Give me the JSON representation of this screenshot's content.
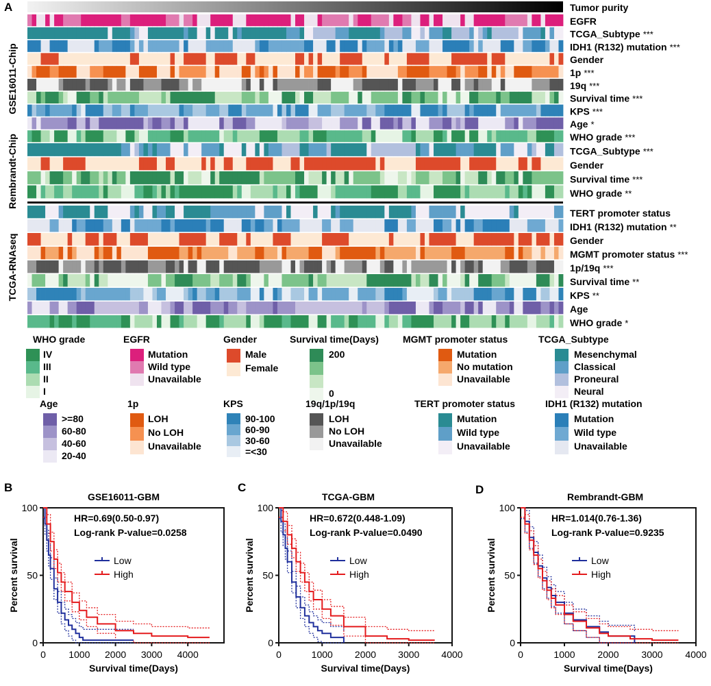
{
  "panel_letters": {
    "a": "A",
    "b": "B",
    "c": "C",
    "d": "D"
  },
  "heatmap": {
    "tumor_purity_label": "Tumor purity",
    "groups": [
      {
        "name": "GSE16011-Chip",
        "rows": [
          {
            "label": "EGFR",
            "sig": "",
            "palette": "egfr"
          },
          {
            "label": "TCGA_Subtype",
            "sig": "***",
            "palette": "subtype"
          },
          {
            "label": "IDH1 (R132) mutation",
            "sig": "***",
            "palette": "idh1"
          },
          {
            "label": "Gender",
            "sig": "",
            "palette": "gender"
          },
          {
            "label": "1p",
            "sig": "***",
            "palette": "p1"
          },
          {
            "label": "19q",
            "sig": "***",
            "palette": "loh"
          },
          {
            "label": "Survival  time",
            "sig": "***",
            "palette": "surv"
          },
          {
            "label": "KPS",
            "sig": "***",
            "palette": "kps"
          },
          {
            "label": "Age",
            "sig": "*",
            "palette": "age"
          },
          {
            "label": "WHO grade",
            "sig": "***",
            "palette": "who"
          }
        ]
      },
      {
        "name": "Rembrandt-Chip",
        "rows": [
          {
            "label": "TCGA_Subtype",
            "sig": "***",
            "palette": "subtype"
          },
          {
            "label": "Gender",
            "sig": "",
            "palette": "gender"
          },
          {
            "label": "Survival  time",
            "sig": "***",
            "palette": "surv"
          },
          {
            "label": "WHO grade",
            "sig": "**",
            "palette": "who"
          }
        ]
      },
      {
        "name": "TCGA-RNAseq",
        "rows": [
          {
            "label": "TERT promoter status",
            "sig": "",
            "palette": "tert"
          },
          {
            "label": "IDH1 (R132) mutation",
            "sig": "**",
            "palette": "idh1"
          },
          {
            "label": "Gender",
            "sig": "",
            "palette": "gender"
          },
          {
            "label": "MGMT promoter status",
            "sig": "***",
            "palette": "mgmt"
          },
          {
            "label": "1p/19q",
            "sig": "***",
            "palette": "loh"
          },
          {
            "label": "Survival  time",
            "sig": "**",
            "palette": "surv"
          },
          {
            "label": "KPS",
            "sig": "**",
            "palette": "kps"
          },
          {
            "label": "Age",
            "sig": "",
            "palette": "age"
          },
          {
            "label": "WHO grade",
            "sig": "*",
            "palette": "who"
          }
        ]
      }
    ],
    "palettes": {
      "egfr": [
        "#dc1f7c",
        "#e07ab0",
        "#efe3ef"
      ],
      "subtype": [
        "#2a8b93",
        "#5f9fc8",
        "#b2c0de",
        "#f3eef6"
      ],
      "idh1": [
        "#2b7fb8",
        "#6fa9d2",
        "#e5e8f1"
      ],
      "gender": [
        "#dd4a2b",
        "#fde9d4"
      ],
      "p1": [
        "#e05a11",
        "#f69151",
        "#fde5d2"
      ],
      "loh": [
        "#555555",
        "#999999",
        "#f2f2f2"
      ],
      "surv": [
        "#2e8b57",
        "#7cc38a",
        "#c8e6c4",
        "#eef6ec"
      ],
      "kps": [
        "#2f83b8",
        "#69a6cf",
        "#a9c8e1",
        "#e8eef5"
      ],
      "age": [
        "#6f5fa8",
        "#9d93c8",
        "#c6c0df",
        "#ece9f4"
      ],
      "who": [
        "#2e9156",
        "#59b98b",
        "#acdcb2",
        "#e6f4e5"
      ],
      "tert": [
        "#2a8b93",
        "#5f9fc8",
        "#f3eef6"
      ],
      "mgmt": [
        "#e05a11",
        "#f5a86c",
        "#fde5d2"
      ]
    }
  },
  "legend": [
    {
      "title": "WHO grade",
      "palette": "who",
      "items": [
        "IV",
        "III",
        "II",
        "I"
      ]
    },
    {
      "title": "EGFR",
      "palette": "egfr",
      "items": [
        "Mutation",
        "Wild type",
        "Unavailable"
      ]
    },
    {
      "title": "Gender",
      "palette": "gender",
      "items": [
        "Male",
        "Female"
      ]
    },
    {
      "title": "Survival  time(Days)",
      "palette": "surv",
      "items": [
        "200",
        "0"
      ]
    },
    {
      "title": "MGMT promoter status",
      "palette": "mgmt",
      "items": [
        "Mutation",
        "No mutation",
        "Unavailable"
      ]
    },
    {
      "title": "TCGA_Subtype",
      "palette": "subtype",
      "items": [
        "Mesenchymal",
        "Classical",
        "Proneural",
        "Neural"
      ]
    },
    {
      "title": "Age",
      "palette": "age",
      "items": [
        ">=80",
        "60-80",
        "40-60",
        "20-40"
      ]
    },
    {
      "title": "1p",
      "palette": "p1",
      "items": [
        "LOH",
        "No LOH",
        "Unavailable"
      ]
    },
    {
      "title": "KPS",
      "palette": "kps",
      "items": [
        "90-100",
        "60-90",
        "30-60",
        "=<30"
      ]
    },
    {
      "title": "19q/1p/19q",
      "palette": "loh",
      "items": [
        "LOH",
        "No LOH",
        "Unavailable"
      ]
    },
    {
      "title": "TERT promoter status",
      "palette": "tert",
      "items": [
        "Mutation",
        "Wild type",
        "Unavailable"
      ]
    },
    {
      "title": "IDH1 (R132) mutation",
      "palette": "idh1",
      "items": [
        "Mutation",
        "Wild type",
        "Unavailable"
      ]
    }
  ],
  "chart_data": [
    {
      "type": "line",
      "title": "GSE16011-GBM",
      "xlabel": "Survival time(Days)",
      "ylabel": "Percent survival",
      "xlim": [
        0,
        5000
      ],
      "ylim": [
        0,
        100
      ],
      "xticks": [
        0,
        1000,
        2000,
        3000,
        4000
      ],
      "yticks": [
        0,
        50,
        100
      ],
      "annotation": [
        "HR=0.69(0.50-0.97)",
        "Log-rank P-value=0.0258"
      ],
      "series": [
        {
          "name": "Low",
          "color": "#1f2f9c",
          "x": [
            0,
            50,
            100,
            150,
            200,
            300,
            400,
            500,
            600,
            700,
            800,
            900,
            1000,
            1100,
            2500
          ],
          "y": [
            100,
            88,
            76,
            65,
            55,
            40,
            30,
            22,
            17,
            13,
            10,
            7,
            4,
            2,
            2
          ]
        },
        {
          "name": "High",
          "color": "#e41a1c",
          "x": [
            0,
            100,
            200,
            300,
            400,
            500,
            600,
            800,
            1000,
            1200,
            1500,
            2000,
            2500,
            3000,
            4000,
            4600
          ],
          "y": [
            100,
            88,
            75,
            62,
            52,
            45,
            38,
            30,
            24,
            19,
            14,
            9,
            7,
            5,
            4,
            4
          ]
        }
      ]
    },
    {
      "type": "line",
      "title": "TCGA-GBM",
      "xlabel": "Survival time(Days)",
      "ylabel": "Percent survival",
      "xlim": [
        0,
        4000
      ],
      "ylim": [
        0,
        100
      ],
      "xticks": [
        0,
        1000,
        2000,
        3000,
        4000
      ],
      "yticks": [
        0,
        50,
        100
      ],
      "annotation": [
        "HR=0.672(0.448-1.09)",
        "Log-rank P-value=0.0490"
      ],
      "series": [
        {
          "name": "Low",
          "color": "#1f2f9c",
          "x": [
            0,
            50,
            100,
            150,
            200,
            300,
            400,
            500,
            600,
            700,
            800,
            900,
            1000,
            1200,
            1500
          ],
          "y": [
            100,
            90,
            80,
            70,
            60,
            45,
            34,
            26,
            20,
            15,
            12,
            9,
            7,
            4,
            0
          ]
        },
        {
          "name": "High",
          "color": "#e41a1c",
          "x": [
            0,
            100,
            200,
            300,
            400,
            500,
            600,
            700,
            800,
            1000,
            1200,
            1500,
            2000,
            2500,
            3000,
            3600
          ],
          "y": [
            100,
            90,
            80,
            70,
            60,
            52,
            45,
            38,
            32,
            25,
            20,
            12,
            5,
            3,
            2,
            2
          ]
        }
      ]
    },
    {
      "type": "line",
      "title": "Rembrandt-GBM",
      "xlabel": "Survival time(Days)",
      "ylabel": "Percent survival",
      "xlim": [
        0,
        4000
      ],
      "ylim": [
        0,
        100
      ],
      "xticks": [
        0,
        1000,
        2000,
        3000,
        4000
      ],
      "yticks": [
        0,
        50,
        100
      ],
      "annotation": [
        "HR=1.014(0.76-1.36)",
        "Log-rank P-value=0.9235"
      ],
      "series": [
        {
          "name": "Low",
          "color": "#1f2f9c",
          "x": [
            0,
            100,
            200,
            300,
            400,
            500,
            600,
            700,
            800,
            1000,
            1200,
            1500,
            1800,
            2000,
            2600
          ],
          "y": [
            100,
            90,
            78,
            67,
            57,
            48,
            41,
            35,
            30,
            22,
            17,
            12,
            8,
            5,
            0
          ]
        },
        {
          "name": "High",
          "color": "#e41a1c",
          "x": [
            0,
            100,
            200,
            300,
            400,
            500,
            600,
            700,
            800,
            1000,
            1200,
            1500,
            1800,
            2000,
            2500,
            3000,
            3600
          ],
          "y": [
            100,
            88,
            76,
            65,
            55,
            46,
            39,
            33,
            28,
            21,
            16,
            11,
            7,
            5,
            3,
            2,
            2
          ]
        }
      ]
    }
  ]
}
